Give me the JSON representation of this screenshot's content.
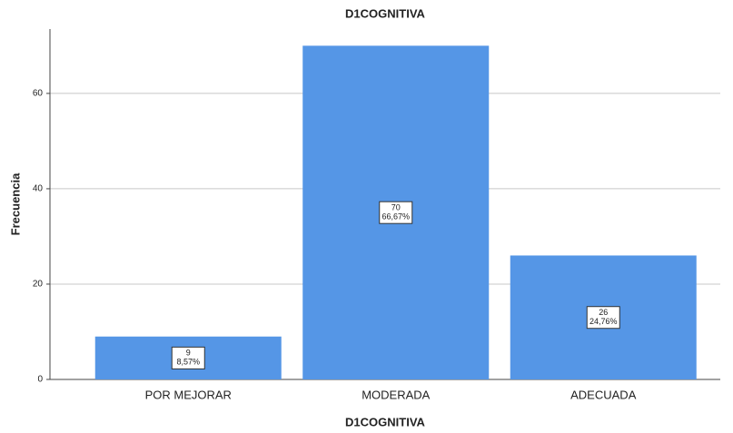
{
  "chart_data": {
    "type": "bar",
    "title": "D1COGNITIVA",
    "x_label": "D1COGNITIVA",
    "y_label": "Frecuencia",
    "categories": [
      "POR MEJORAR",
      "MODERADA",
      "ADECUADA"
    ],
    "values": [
      9,
      70,
      26
    ],
    "percent_labels": [
      "8,57%",
      "66,67%",
      "24,76%"
    ],
    "color": "#5596e6",
    "ylim": [
      0,
      73.5
    ],
    "yticks": [
      0,
      20,
      40,
      60
    ],
    "grid": true
  }
}
